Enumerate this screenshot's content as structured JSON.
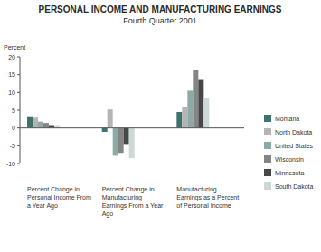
{
  "chart_data": {
    "type": "bar",
    "title": "PERSONAL INCOME AND MANUFACTURING EARNINGS",
    "subtitle": "Fourth Quarter 2001",
    "y_label": "Percent",
    "categories": [
      "Percent Change in Personal Income From a Year Ago",
      "Percent Change in Manufacturing Earnings From a Year Ago",
      "Manufacturing Earnings as a Percent of Personal Income"
    ],
    "series": [
      {
        "name": "Montana",
        "color": "#3e726b",
        "values": [
          3.3,
          -1.1,
          4.5
        ]
      },
      {
        "name": "North Dakota",
        "color": "#b4b4b4",
        "values": [
          2.9,
          5.2,
          5.8
        ]
      },
      {
        "name": "United States",
        "color": "#8eaaa6",
        "values": [
          1.8,
          -7.8,
          10.5
        ]
      },
      {
        "name": "Wisconsin",
        "color": "#858585",
        "values": [
          1.4,
          -7.0,
          16.4
        ]
      },
      {
        "name": "Minnesota",
        "color": "#474747",
        "values": [
          0.8,
          -4.5,
          13.5
        ]
      },
      {
        "name": "South Dakota",
        "color": "#cdd9d6",
        "values": [
          0.8,
          -8.5,
          8.3
        ]
      }
    ],
    "ylim": [
      -10,
      20
    ],
    "yticks": [
      -10,
      -5,
      0,
      5,
      10,
      15,
      20
    ],
    "legend": "right"
  }
}
